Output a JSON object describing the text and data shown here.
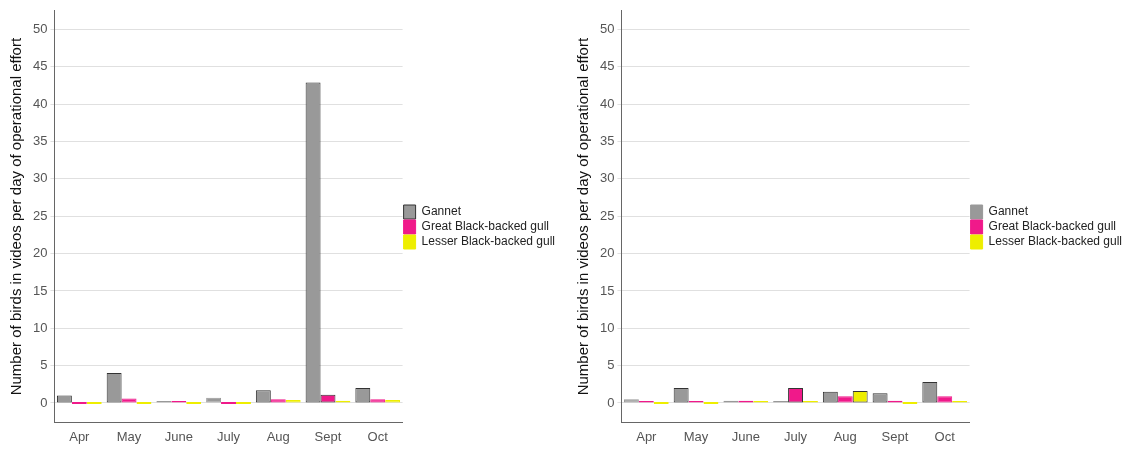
{
  "chart_data": [
    {
      "type": "bar",
      "ylabel": "Number of birds in videos per day of operational effort",
      "categories": [
        "Apr",
        "May",
        "June",
        "July",
        "Aug",
        "Sept",
        "Oct"
      ],
      "ylim": [
        -2.6,
        52.5
      ],
      "yticks": [
        0,
        5,
        10,
        15,
        20,
        25,
        30,
        35,
        40,
        45,
        50
      ],
      "grid": "y",
      "legend": "right",
      "series": [
        {
          "name": "Gannet",
          "color": "#999999",
          "values": [
            1.0,
            4.0,
            0.2,
            0.7,
            1.7,
            42.9,
            2.0
          ]
        },
        {
          "name": "Great Black-backed gull",
          "color": "#f0198a",
          "values": [
            0,
            0.6,
            0.2,
            0,
            0.5,
            1.1,
            0.5
          ]
        },
        {
          "name": "Lesser Black-backed gull",
          "color": "#eeee00",
          "values": [
            0,
            0,
            0,
            0,
            0.4,
            0.3,
            0.4
          ]
        }
      ]
    },
    {
      "type": "bar",
      "ylabel": "Number of birds in videos per day of operational effort",
      "categories": [
        "Apr",
        "May",
        "June",
        "July",
        "Aug",
        "Sept",
        "Oct"
      ],
      "ylim": [
        -2.6,
        52.5
      ],
      "yticks": [
        0,
        5,
        10,
        15,
        20,
        25,
        30,
        35,
        40,
        45,
        50
      ],
      "grid": "y",
      "legend": "right",
      "series": [
        {
          "name": "Gannet",
          "color": "#999999",
          "values": [
            0.5,
            2.0,
            0.3,
            0.1,
            1.5,
            1.3,
            2.8
          ]
        },
        {
          "name": "Great Black-backed gull",
          "color": "#f0198a",
          "values": [
            0.2,
            0.1,
            0.3,
            2.0,
            0.9,
            0.3,
            0.9
          ]
        },
        {
          "name": "Lesser Black-backed gull",
          "color": "#eeee00",
          "values": [
            0,
            0,
            0.1,
            0.2,
            1.6,
            0,
            0.2
          ]
        }
      ]
    }
  ]
}
